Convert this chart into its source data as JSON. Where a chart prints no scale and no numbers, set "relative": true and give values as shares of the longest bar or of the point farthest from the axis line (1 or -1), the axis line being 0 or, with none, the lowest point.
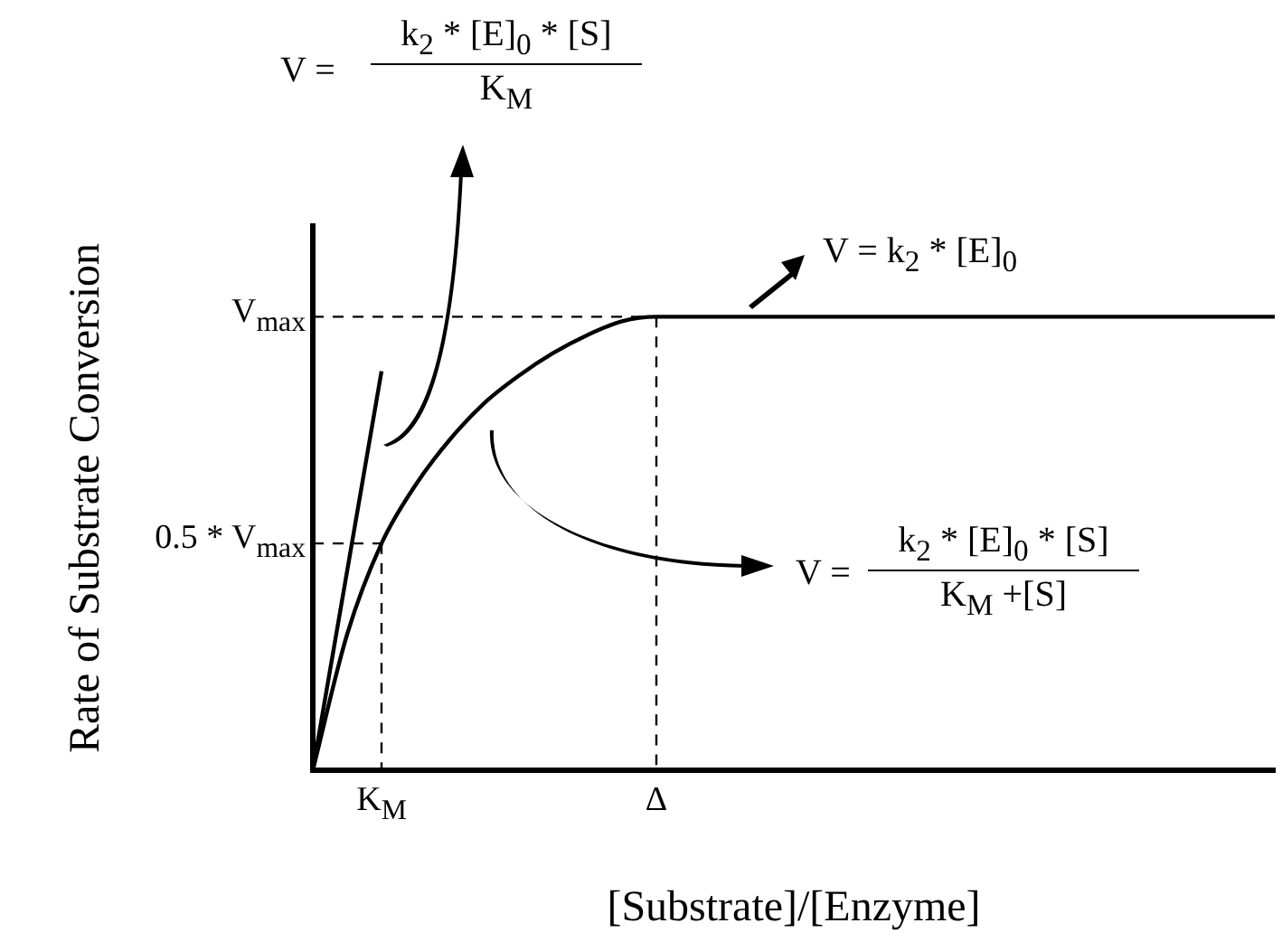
{
  "chart_data": {
    "type": "line",
    "relative": true,
    "xlabel": "[Substrate]/[Enzyme]",
    "ylabel": "Rate of Substrate Conversion",
    "categories": [
      null,
      null,
      "K$_{M}$",
      null,
      null,
      null,
      null,
      null,
      null,
      null,
      "Δ",
      null,
      null,
      null,
      null,
      null,
      null,
      null,
      null,
      null,
      null,
      null,
      null,
      null,
      null,
      null,
      null,
      null,
      null
    ],
    "series": [
      {
        "type": "line",
        "color": "#000000",
        "line_style": "solid",
        "values": [
          0,
          0.3,
          0.5,
          0.63,
          0.73,
          0.81,
          0.87,
          0.92,
          0.96,
          0.99,
          1,
          1,
          1,
          1,
          1,
          1,
          1,
          1,
          1,
          1,
          1,
          1,
          1,
          1,
          1,
          1,
          1,
          1,
          1
        ]
      },
      {
        "type": "line",
        "color": "#000000",
        "line_style": "solid",
        "values": [
          0,
          null,
          0.88,
          null,
          null,
          null,
          null,
          null,
          null,
          null,
          null,
          null,
          null,
          null,
          null,
          null,
          null,
          null,
          null,
          null,
          null,
          null,
          null,
          null,
          null,
          null,
          null,
          null,
          null
        ]
      },
      {
        "type": "line",
        "color": "#000000",
        "line_style": "dashed",
        "values": [
          1,
          1,
          1,
          1,
          1,
          1,
          1,
          1,
          1,
          1,
          1,
          null,
          null,
          null,
          null,
          null,
          null,
          null,
          null,
          null,
          null,
          null,
          null,
          null,
          null,
          null,
          null,
          null,
          null
        ]
      },
      {
        "type": "line",
        "color": "#000000",
        "line_style": "dashed",
        "x": [
          "Δ",
          "Δ"
        ],
        "values": [
          1,
          0
        ]
      },
      {
        "type": "line",
        "color": "#000000",
        "line_style": "dashed",
        "values": [
          0.5,
          0.5,
          0.5,
          null,
          null,
          null,
          null,
          null,
          null,
          null,
          null,
          null,
          null,
          null,
          null,
          null,
          null,
          null,
          null,
          null,
          null,
          null,
          null,
          null,
          null,
          null,
          null,
          null,
          null
        ]
      },
      {
        "type": "line",
        "color": "#000000",
        "line_style": "dashed",
        "x": [
          "K$_{M}$",
          "K$_{M}$"
        ],
        "values": [
          0.5,
          0
        ]
      }
    ],
    "annotations": [
      "0.5 * V$_{max}$",
      "V$_{max}$",
      "V =",
      "k$_{2}$ * [E]$_{0}$ * [S]",
      "K$_{M}$",
      "V = k$_{2}$ * [E]$_{0}$",
      "V =",
      "k$_{2}$ * [E]$_{0}$ * [S]",
      "K$_{M}$ +[S]"
    ],
    "marker": "none",
    "grid": false,
    "legend": false
  }
}
